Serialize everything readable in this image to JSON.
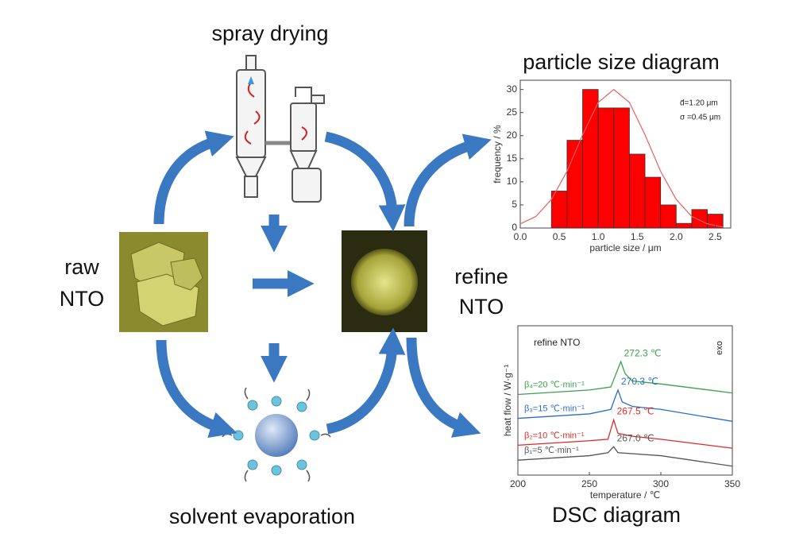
{
  "labels": {
    "spray_drying": "spray drying",
    "particle_size_diagram": "particle size diagram",
    "raw": [
      "raw",
      "NTO"
    ],
    "refine": [
      "refine",
      "NTO"
    ],
    "solvent_evaporation": "solvent evaporation",
    "dsc_diagram": "DSC diagram"
  },
  "chart_data": [
    {
      "type": "histogram",
      "xlabel": "particle size / μm",
      "ylabel": "frequency / %",
      "bins": [
        0.4,
        0.6,
        0.8,
        1.0,
        1.2,
        1.4,
        1.6,
        1.8,
        2.0,
        2.2,
        2.4,
        2.6
      ],
      "values": [
        8,
        19,
        30,
        26,
        26,
        16,
        11,
        5,
        1,
        4,
        3
      ],
      "color": "#ff0000",
      "xlim": [
        0,
        2.7
      ],
      "ylim": [
        0,
        32
      ],
      "xticks": [
        {
          "value": 0,
          "label": "0.0"
        },
        0.5,
        {
          "value": 1,
          "label": "1.0"
        },
        1.5,
        {
          "value": 2,
          "label": "2.0"
        },
        2.5
      ],
      "yticks": [
        0,
        5,
        10,
        15,
        20,
        25,
        30
      ],
      "annotations": [
        "d̄=1.20 μm",
        "σ =0.45 μm"
      ],
      "fit": {
        "color": "#e86060",
        "x": [
          0,
          0.2,
          0.4,
          0.6,
          0.8,
          1.0,
          1.2,
          1.4,
          1.6,
          1.8,
          2.0,
          2.2,
          2.4,
          2.6
        ],
        "values": [
          0.9,
          2.5,
          6.2,
          12.3,
          20.2,
          27.2,
          30,
          27.2,
          20.2,
          12.3,
          6.2,
          2.5,
          0.9,
          0.2
        ]
      }
    },
    {
      "type": "line",
      "xlabel": "temperature / ℃",
      "ylabel": "heat flow / W·g⁻¹",
      "xlim": [
        200,
        350
      ],
      "xticks": [
        200,
        250,
        300,
        350
      ],
      "ylim": [
        0,
        10
      ],
      "annotations": [
        "refine NTO",
        "exo"
      ],
      "series": [
        {
          "name": "β₄=20 ℃·min⁻¹",
          "color": "#3aa04a",
          "peak_label": "272.3 ℃",
          "x": [
            200,
            250,
            265,
            272,
            275,
            280,
            300,
            350
          ],
          "values": [
            5.4,
            5.7,
            5.9,
            7.6,
            6.8,
            6.3,
            6.1,
            5.5
          ]
        },
        {
          "name": "β₃=15 ℃·min⁻¹",
          "color": "#2a6cc8",
          "peak_label": "270.3 ℃",
          "x": [
            200,
            250,
            265,
            270,
            273,
            280,
            300,
            350
          ],
          "values": [
            3.8,
            4.1,
            4.4,
            5.7,
            4.9,
            4.6,
            4.4,
            3.6
          ]
        },
        {
          "name": "β₂=10 ℃·min⁻¹",
          "color": "#e02a2a",
          "peak_label": "267.5 ℃",
          "x": [
            200,
            250,
            263,
            267,
            270,
            280,
            300,
            350
          ],
          "values": [
            2.0,
            2.3,
            2.4,
            3.7,
            2.8,
            2.6,
            2.4,
            1.8
          ]
        },
        {
          "name": "β₁=5 ℃·min⁻¹",
          "color": "#555555",
          "peak_label": "267.0 ℃",
          "x": [
            200,
            250,
            263,
            267,
            270,
            300,
            350
          ],
          "values": [
            1.0,
            1.3,
            1.5,
            1.9,
            1.5,
            1.3,
            0.6
          ]
        }
      ]
    }
  ]
}
